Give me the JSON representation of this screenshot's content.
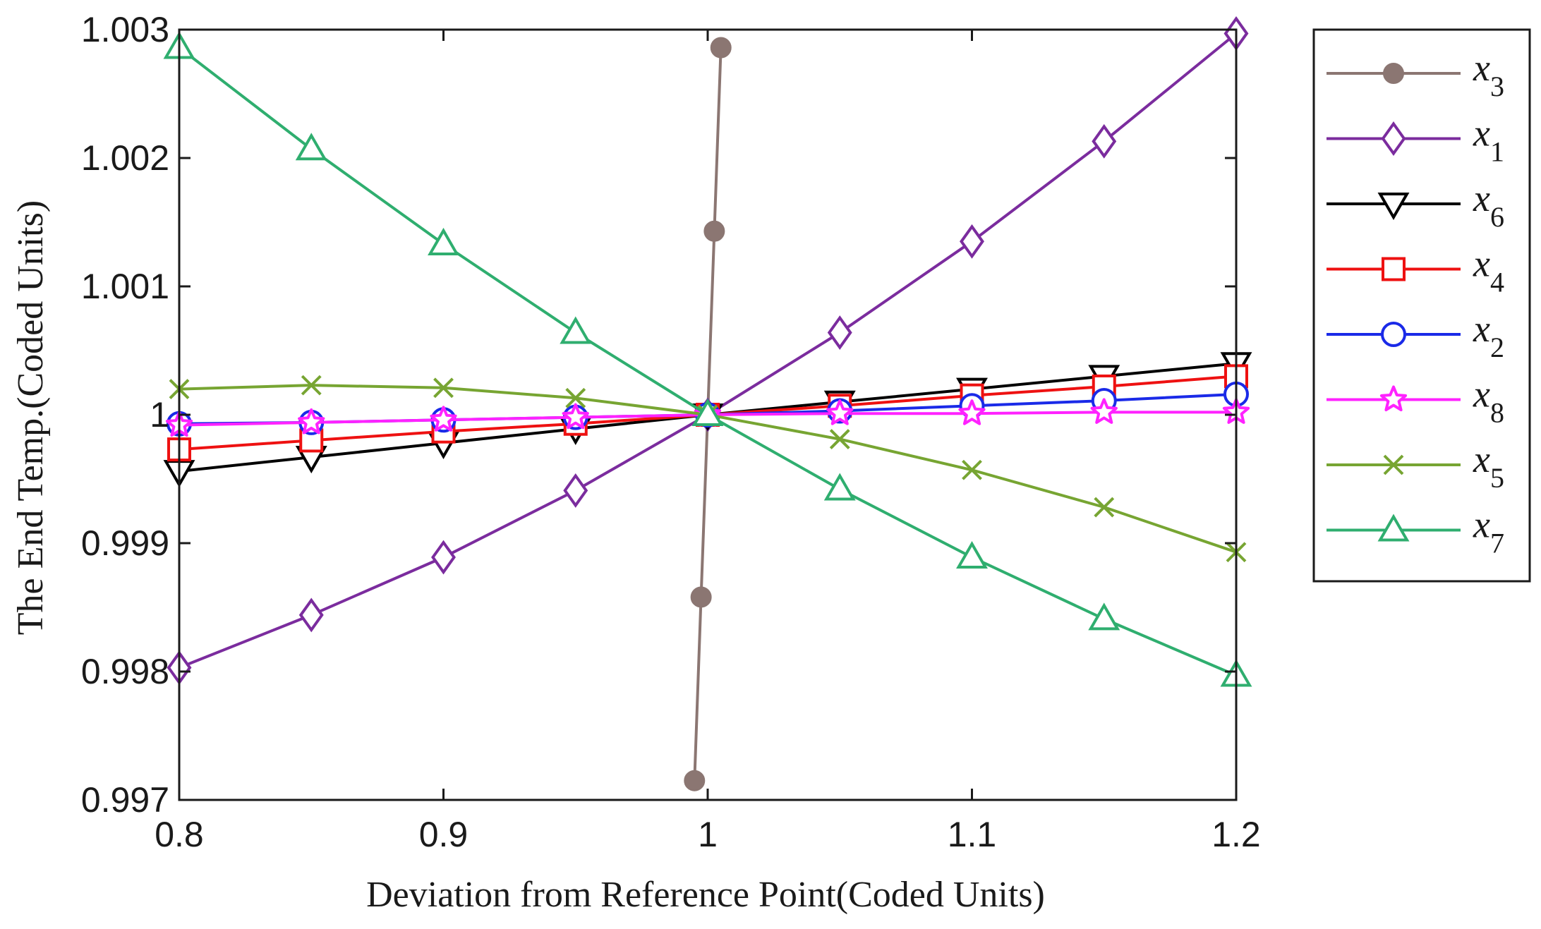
{
  "chart_data": {
    "type": "line",
    "title": "",
    "xlabel": "Deviation from Reference Point(Coded Units)",
    "ylabel": "The End Temp.(Coded Units)",
    "xlim": [
      0.8,
      1.2
    ],
    "ylim": [
      0.997,
      1.003
    ],
    "x_ticks": [
      0.8,
      0.9,
      1.0,
      1.1,
      1.2
    ],
    "x_tick_labels": [
      "0.8",
      "0.9",
      "1",
      "1.1",
      "1.2"
    ],
    "y_ticks": [
      0.997,
      0.998,
      0.999,
      1.0,
      1.001,
      1.002,
      1.003
    ],
    "y_tick_labels": [
      "0.997",
      "0.998",
      "0.999",
      "1",
      "1.001",
      "1.002",
      "1.003"
    ],
    "grid": false,
    "legend_position": "right-outside",
    "series": [
      {
        "name": "x3",
        "base": "x",
        "sub": "3",
        "color": "#8b7672",
        "marker": "filled-circle",
        "x": [
          0.995,
          0.9975,
          1.0,
          1.0025,
          1.005
        ],
        "y": [
          0.99715,
          0.99858,
          1.0,
          1.00143,
          1.00286
        ]
      },
      {
        "name": "x1",
        "base": "x",
        "sub": "1",
        "color": "#7b2c9e",
        "marker": "diamond",
        "x": [
          0.8,
          0.85,
          0.9,
          0.95,
          1.0,
          1.05,
          1.1,
          1.15,
          1.2
        ],
        "y": [
          0.99803,
          0.99844,
          0.99889,
          0.99941,
          1.0,
          1.00064,
          1.00135,
          1.00213,
          1.00297
        ]
      },
      {
        "name": "x6",
        "base": "x",
        "sub": "6",
        "color": "#000000",
        "marker": "triangle-down",
        "x": [
          0.8,
          0.85,
          0.9,
          0.95,
          1.0,
          1.05,
          1.1,
          1.15,
          1.2
        ],
        "y": [
          0.99956,
          0.99967,
          0.99978,
          0.99989,
          1.0,
          1.0001,
          1.0002,
          1.0003,
          1.0004
        ]
      },
      {
        "name": "x4",
        "base": "x",
        "sub": "4",
        "color": "#ee1111",
        "marker": "square",
        "x": [
          0.8,
          0.85,
          0.9,
          0.95,
          1.0,
          1.05,
          1.1,
          1.15,
          1.2
        ],
        "y": [
          0.99973,
          0.9998,
          0.99987,
          0.99993,
          1.0,
          1.00007,
          1.00015,
          1.00022,
          1.0003
        ]
      },
      {
        "name": "x2",
        "base": "x",
        "sub": "2",
        "color": "#1a2ae8",
        "marker": "circle",
        "x": [
          0.8,
          0.85,
          0.9,
          0.95,
          1.0,
          1.05,
          1.1,
          1.15,
          1.2
        ],
        "y": [
          0.99993,
          0.99994,
          0.99996,
          0.99998,
          1.0,
          1.00003,
          1.00007,
          1.00011,
          1.00016
        ]
      },
      {
        "name": "x8",
        "base": "x",
        "sub": "8",
        "color": "#ff22ff",
        "marker": "star",
        "x": [
          0.8,
          0.85,
          0.9,
          0.95,
          1.0,
          1.05,
          1.1,
          1.15,
          1.2
        ],
        "y": [
          0.99992,
          0.99994,
          0.99996,
          0.99998,
          1.0,
          1.00001,
          1.00001,
          1.00002,
          1.00002
        ]
      },
      {
        "name": "x5",
        "base": "x",
        "sub": "5",
        "color": "#77a532",
        "marker": "x-cross",
        "x": [
          0.8,
          0.85,
          0.9,
          0.95,
          1.0,
          1.05,
          1.1,
          1.15,
          1.2
        ],
        "y": [
          1.0002,
          1.00023,
          1.00021,
          1.00013,
          1.0,
          0.99981,
          0.99957,
          0.99928,
          0.99893
        ]
      },
      {
        "name": "x7",
        "base": "x",
        "sub": "7",
        "color": "#2fae6f",
        "marker": "triangle-up",
        "x": [
          0.8,
          0.85,
          0.9,
          0.95,
          1.0,
          1.05,
          1.1,
          1.15,
          1.2
        ],
        "y": [
          1.00286,
          1.00207,
          1.00133,
          1.00064,
          1.0,
          0.99942,
          0.99889,
          0.99841,
          0.99797
        ]
      }
    ]
  }
}
